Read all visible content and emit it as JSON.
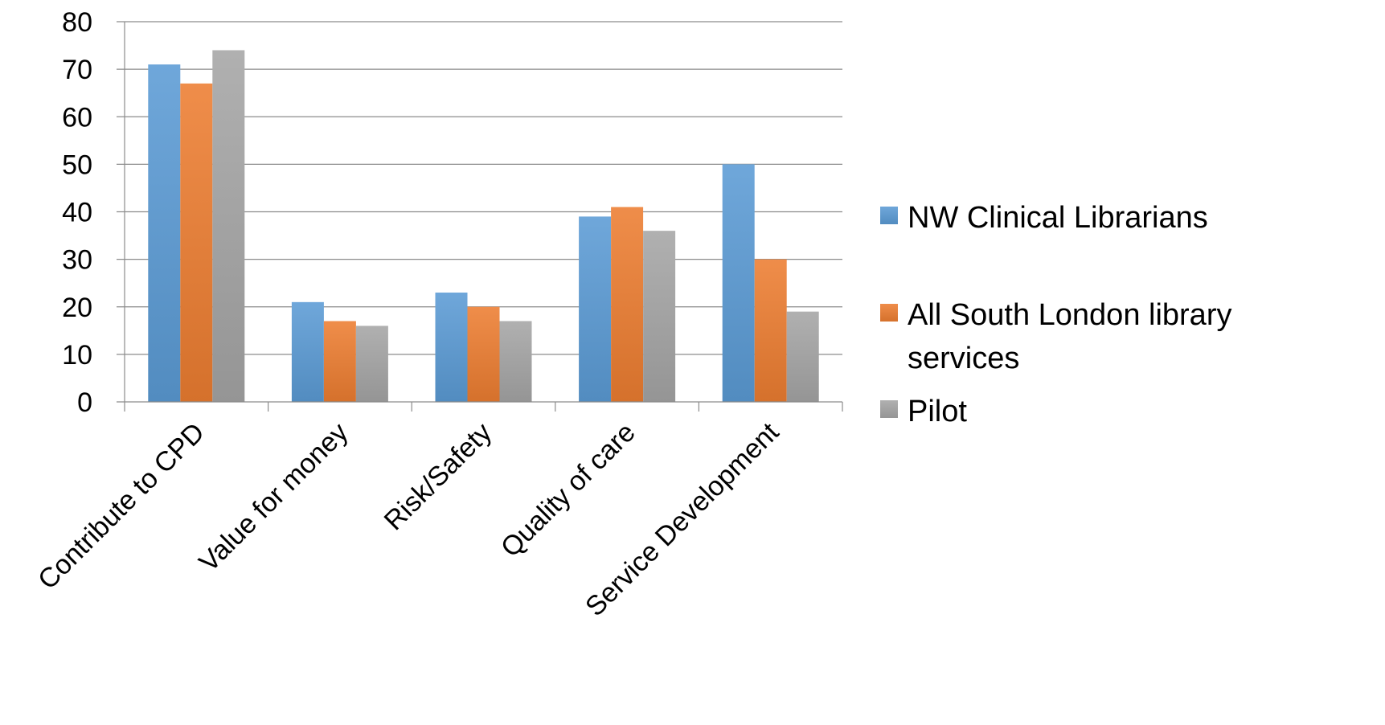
{
  "chart_data": {
    "type": "bar",
    "title": "",
    "xlabel": "",
    "ylabel": "",
    "categories": [
      "Contribute to CPD",
      "Value for money",
      "Risk/Safety",
      "Quality of care",
      "Service Development"
    ],
    "series": [
      {
        "name": "NW Clinical Librarians",
        "values": [
          71,
          21,
          23,
          39,
          50
        ],
        "color": "#5B9BD5"
      },
      {
        "name": "All South London library services",
        "values": [
          67,
          17,
          20,
          41,
          30
        ],
        "color": "#ED7D31"
      },
      {
        "name": "Pilot",
        "values": [
          74,
          16,
          17,
          36,
          19
        ],
        "color": "#A5A5A5"
      }
    ],
    "ylim": [
      0,
      80
    ],
    "yticks": [
      0,
      10,
      20,
      30,
      40,
      50,
      60,
      70,
      80
    ],
    "grid": true,
    "legend_position": "right",
    "legend_lines": [
      [
        "NW Clinical Librarians"
      ],
      [
        "All South London library",
        "services"
      ],
      [
        "Pilot"
      ]
    ]
  }
}
